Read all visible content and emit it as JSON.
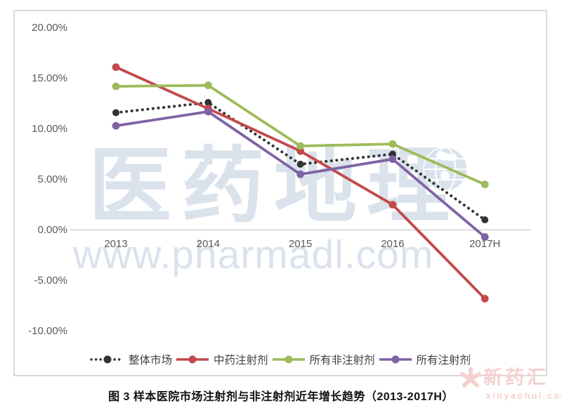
{
  "caption": "图 3  样本医院市场注射剂与非注射剂近年增长趋势（2013-2017H）",
  "watermarks": {
    "brand_large": "医药地理",
    "brand_url": "www.pharmadl.com",
    "corner_brand": "新药汇",
    "corner_url": "xinyaohui.com",
    "brand_color": "#DAE2EC",
    "corner_color": "#F3D1CE"
  },
  "colors": {
    "axis_text": "#595959",
    "zero_line": "#BFBFBF",
    "frame_border": "#D9D9D9",
    "legend_text": "#404040"
  },
  "chart_data": {
    "type": "line",
    "title": "",
    "xlabel": "",
    "ylabel": "",
    "categories": [
      "2013",
      "2014",
      "2015",
      "2016",
      "2017H"
    ],
    "y_ticks": [
      "20.00%",
      "15.00%",
      "10.00%",
      "5.00%",
      "0.00%",
      "-5.00%",
      "-10.00%"
    ],
    "ylim": [
      -10,
      20
    ],
    "grid": "zero-line-only",
    "legend_position": "bottom",
    "series": [
      {
        "name": "整体市场",
        "color": "#333333",
        "style": "dotted",
        "values": [
          11.6,
          12.6,
          6.5,
          7.5,
          1.0
        ]
      },
      {
        "name": "中药注射剂",
        "color": "#C3494B",
        "style": "solid",
        "values": [
          16.1,
          12.0,
          7.8,
          2.5,
          -6.8
        ]
      },
      {
        "name": "所有非注射剂",
        "color": "#9DBB5A",
        "style": "solid",
        "values": [
          14.2,
          14.3,
          8.3,
          8.5,
          4.5
        ]
      },
      {
        "name": "所有注射剂",
        "color": "#7F63A4",
        "style": "solid",
        "values": [
          10.3,
          11.7,
          5.5,
          7.0,
          -0.7
        ]
      }
    ]
  }
}
